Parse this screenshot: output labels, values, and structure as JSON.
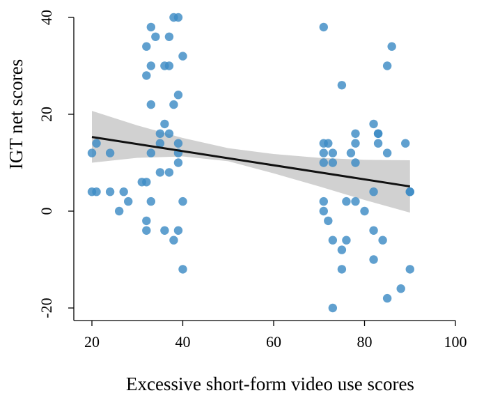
{
  "chart_data": {
    "type": "scatter",
    "title": "",
    "xlabel": "Excessive short-form video use scores",
    "ylabel": "IGT net scores",
    "xlim": [
      20,
      100
    ],
    "ylim": [
      -20,
      40
    ],
    "xticks": [
      20,
      40,
      60,
      80,
      100
    ],
    "yticks": [
      -20,
      0,
      20,
      40
    ],
    "grid": false,
    "legend": "none",
    "colors": {
      "points": "#3d8bc4",
      "fit_line": "#111111",
      "ci_band": "#bdbdbd"
    },
    "points": [
      {
        "x": 20,
        "y": 12
      },
      {
        "x": 20,
        "y": 4
      },
      {
        "x": 21,
        "y": 14
      },
      {
        "x": 21,
        "y": 4
      },
      {
        "x": 24,
        "y": 12
      },
      {
        "x": 24,
        "y": 4
      },
      {
        "x": 26,
        "y": 0
      },
      {
        "x": 27,
        "y": 4
      },
      {
        "x": 28,
        "y": 2
      },
      {
        "x": 31,
        "y": 6
      },
      {
        "x": 32,
        "y": 34
      },
      {
        "x": 32,
        "y": 28
      },
      {
        "x": 32,
        "y": 6
      },
      {
        "x": 32,
        "y": -2
      },
      {
        "x": 32,
        "y": -4
      },
      {
        "x": 33,
        "y": 38
      },
      {
        "x": 33,
        "y": 30
      },
      {
        "x": 33,
        "y": 22
      },
      {
        "x": 33,
        "y": 12
      },
      {
        "x": 33,
        "y": 2
      },
      {
        "x": 34,
        "y": 36
      },
      {
        "x": 35,
        "y": 16
      },
      {
        "x": 35,
        "y": 14
      },
      {
        "x": 35,
        "y": 8
      },
      {
        "x": 36,
        "y": 30
      },
      {
        "x": 36,
        "y": 18
      },
      {
        "x": 36,
        "y": -4
      },
      {
        "x": 37,
        "y": 36
      },
      {
        "x": 37,
        "y": 30
      },
      {
        "x": 37,
        "y": 16
      },
      {
        "x": 37,
        "y": 8
      },
      {
        "x": 38,
        "y": 40
      },
      {
        "x": 38,
        "y": 22
      },
      {
        "x": 38,
        "y": -6
      },
      {
        "x": 39,
        "y": 40
      },
      {
        "x": 39,
        "y": 24
      },
      {
        "x": 39,
        "y": 14
      },
      {
        "x": 39,
        "y": 12
      },
      {
        "x": 39,
        "y": 10
      },
      {
        "x": 39,
        "y": -4
      },
      {
        "x": 40,
        "y": 32
      },
      {
        "x": 40,
        "y": 2
      },
      {
        "x": 40,
        "y": -12
      },
      {
        "x": 71,
        "y": 38
      },
      {
        "x": 71,
        "y": 14
      },
      {
        "x": 71,
        "y": 12
      },
      {
        "x": 71,
        "y": 10
      },
      {
        "x": 71,
        "y": 2
      },
      {
        "x": 71,
        "y": 0
      },
      {
        "x": 72,
        "y": 14
      },
      {
        "x": 72,
        "y": -2
      },
      {
        "x": 73,
        "y": 12
      },
      {
        "x": 73,
        "y": 10
      },
      {
        "x": 73,
        "y": -6
      },
      {
        "x": 73,
        "y": -20
      },
      {
        "x": 75,
        "y": 26
      },
      {
        "x": 75,
        "y": -8
      },
      {
        "x": 75,
        "y": -12
      },
      {
        "x": 76,
        "y": 2
      },
      {
        "x": 76,
        "y": -6
      },
      {
        "x": 77,
        "y": 12
      },
      {
        "x": 78,
        "y": 16
      },
      {
        "x": 78,
        "y": 14
      },
      {
        "x": 78,
        "y": 10
      },
      {
        "x": 78,
        "y": 2
      },
      {
        "x": 80,
        "y": 0
      },
      {
        "x": 82,
        "y": 18
      },
      {
        "x": 82,
        "y": 4
      },
      {
        "x": 82,
        "y": -4
      },
      {
        "x": 82,
        "y": -10
      },
      {
        "x": 83,
        "y": 16
      },
      {
        "x": 83,
        "y": 16
      },
      {
        "x": 83,
        "y": 14
      },
      {
        "x": 84,
        "y": -6
      },
      {
        "x": 85,
        "y": 30
      },
      {
        "x": 85,
        "y": 12
      },
      {
        "x": 85,
        "y": -18
      },
      {
        "x": 86,
        "y": 34
      },
      {
        "x": 88,
        "y": -16
      },
      {
        "x": 89,
        "y": 14
      },
      {
        "x": 90,
        "y": 4
      },
      {
        "x": 90,
        "y": 4
      },
      {
        "x": 90,
        "y": -12
      }
    ],
    "fit_line": {
      "x": [
        20,
        90
      ],
      "y": [
        15.3,
        5.1
      ]
    },
    "ci_band": {
      "x": [
        20,
        30,
        40,
        50,
        60,
        70,
        80,
        90
      ],
      "lower": [
        10.0,
        11.0,
        11.3,
        10.3,
        7.8,
        5.1,
        2.3,
        -0.3
      ],
      "upper": [
        20.7,
        17.7,
        15.1,
        13.0,
        11.8,
        11.0,
        10.6,
        10.5
      ]
    }
  }
}
